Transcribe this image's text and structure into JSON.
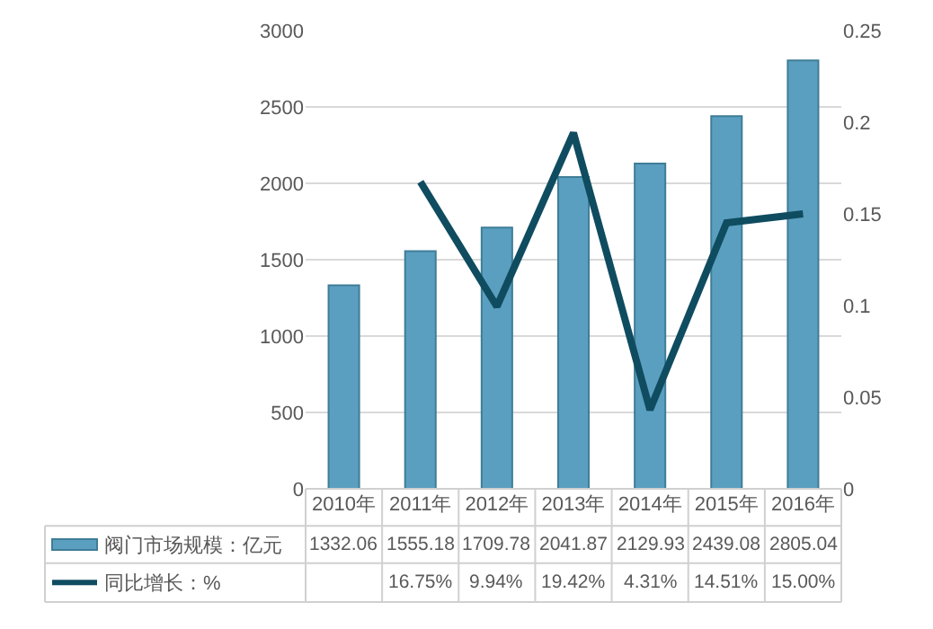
{
  "chart_data": {
    "type": "bar",
    "categories": [
      "2010年",
      "2011年",
      "2012年",
      "2013年",
      "2014年",
      "2015年",
      "2016年"
    ],
    "series": [
      {
        "name": "阀门市场规模：亿元",
        "color": "#5b9fc0",
        "values": [
          1332.06,
          1555.18,
          1709.78,
          2041.87,
          2129.93,
          2439.08,
          2805.04
        ],
        "value_labels": [
          "1332.06",
          "1555.18",
          "1709.78",
          "2041.87",
          "2129.93",
          "2439.08",
          "2805.04"
        ]
      },
      {
        "name": "同比增长：%",
        "type": "line",
        "axis": "y2",
        "color": "#0f4c60",
        "values": [
          null,
          0.1675,
          0.0994,
          0.1942,
          0.0431,
          0.1451,
          0.15
        ],
        "value_labels": [
          null,
          "16.75%",
          "9.94%",
          "19.42%",
          "4.31%",
          "14.51%",
          "15.00%"
        ]
      }
    ],
    "ylim": [
      0,
      3000
    ],
    "yticks": [
      0,
      500,
      1000,
      1500,
      2000,
      2500,
      3000
    ],
    "y2lim": [
      0,
      0.25
    ],
    "y2ticks": [
      0,
      0.05,
      0.1,
      0.15,
      0.2,
      0.25
    ],
    "grid": "y",
    "legend": "bottom"
  }
}
